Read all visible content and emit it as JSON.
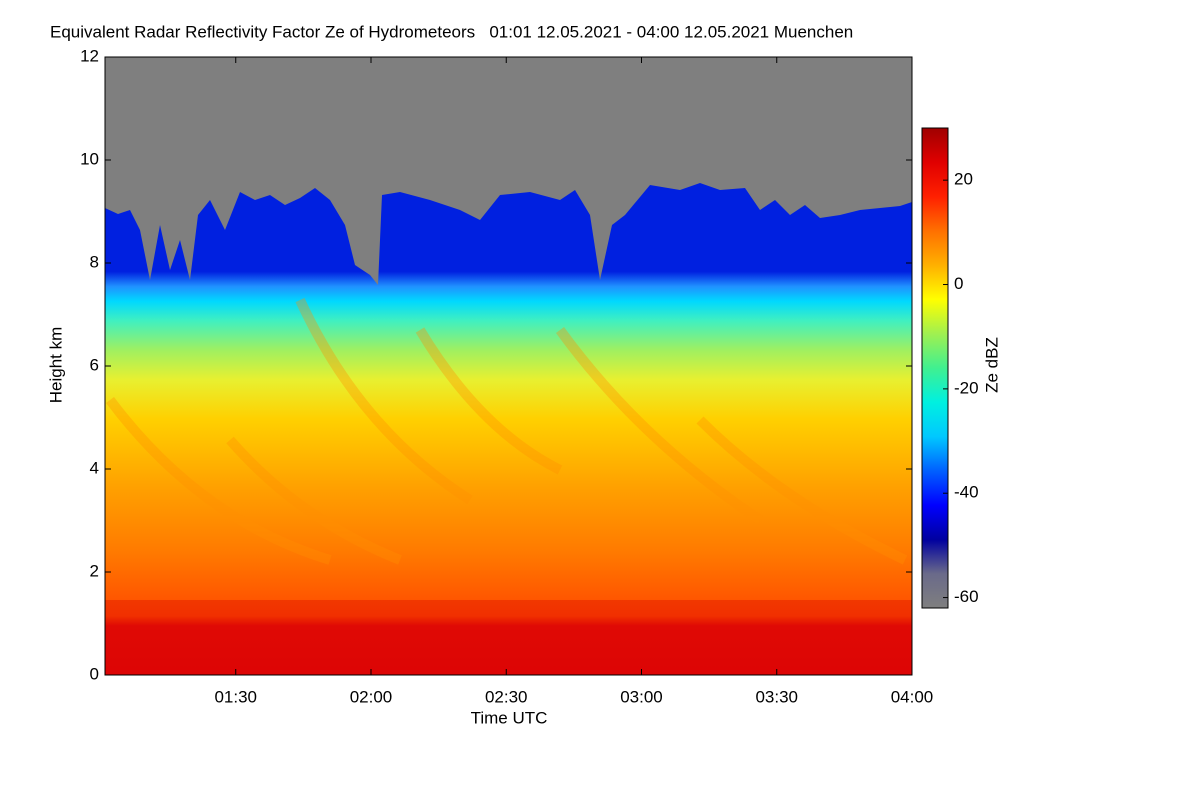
{
  "chart_data": {
    "type": "heatmap",
    "title": "Equivalent Radar Reflectivity Factor Ze of Hydrometeors   01:01 12.05.2021 - 04:00 12.05.2021 Muenchen",
    "x_label": "Time UTC",
    "y_label": "Height km",
    "colorbar_label": "Ze dBZ",
    "xlim": [
      61,
      240
    ],
    "xticks": [
      {
        "value": 90,
        "label": "01:30"
      },
      {
        "value": 120,
        "label": "02:00"
      },
      {
        "value": 150,
        "label": "02:30"
      },
      {
        "value": 180,
        "label": "03:00"
      },
      {
        "value": 210,
        "label": "03:30"
      },
      {
        "value": 240,
        "label": "04:00"
      }
    ],
    "ylim": [
      0,
      12
    ],
    "yticks": [
      0,
      2,
      4,
      6,
      8,
      10,
      12
    ],
    "zlim": [
      -62,
      30
    ],
    "zticks": [
      -60,
      -40,
      -20,
      0,
      20
    ],
    "colorbar_colors": [
      "#7f7f7f",
      "#6a6a8a",
      "#0000a0",
      "#0000ff",
      "#0060ff",
      "#00c8ff",
      "#00f0e0",
      "#40f090",
      "#a0f050",
      "#ffff00",
      "#ffb000",
      "#ff7000",
      "#ff2000",
      "#e00000",
      "#a00000"
    ]
  }
}
